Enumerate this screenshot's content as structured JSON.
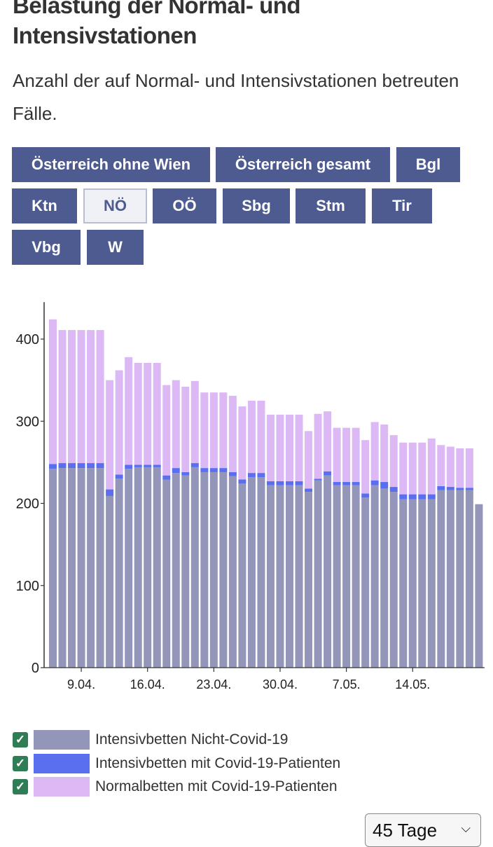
{
  "header": {
    "title": "Belastung der Normal- und Intensivstationen",
    "subtitle": "Anzahl der auf Normal- und Intensivstationen betreuten Fälle."
  },
  "regions": {
    "selected": "NÖ",
    "buttons": [
      {
        "label": "Österreich ohne Wien"
      },
      {
        "label": "Österreich gesamt"
      },
      {
        "label": "Bgl"
      },
      {
        "label": "Ktn"
      },
      {
        "label": "NÖ"
      },
      {
        "label": "OÖ"
      },
      {
        "label": "Sbg"
      },
      {
        "label": "Stm"
      },
      {
        "label": "Tir"
      },
      {
        "label": "Vbg"
      },
      {
        "label": "W"
      }
    ]
  },
  "chart_data": {
    "type": "bar",
    "stacked": true,
    "yticks": [
      0,
      100,
      200,
      300,
      400
    ],
    "ylim": [
      0,
      445
    ],
    "xtick_labels": [
      {
        "index": 3,
        "label": "9.04."
      },
      {
        "index": 10,
        "label": "16.04."
      },
      {
        "index": 17,
        "label": "23.04."
      },
      {
        "index": 24,
        "label": "30.04."
      },
      {
        "index": 31,
        "label": "7.05."
      },
      {
        "index": 38,
        "label": "14.05."
      }
    ],
    "series": [
      {
        "name": "Intensivbetten Nicht-Covid-19",
        "color": "#9396b8",
        "values": [
          242,
          243,
          243,
          243,
          243,
          243,
          209,
          230,
          242,
          244,
          244,
          244,
          229,
          237,
          234,
          244,
          238,
          238,
          238,
          233,
          224,
          232,
          232,
          222,
          222,
          222,
          222,
          214,
          228,
          234,
          222,
          222,
          222,
          207,
          222,
          218,
          214,
          205,
          205,
          205,
          205,
          216,
          216,
          216,
          216,
          199
        ]
      },
      {
        "name": "Intensivbetten mit Covid-19-Patienten",
        "color": "#5a6ff0",
        "values": [
          6,
          6,
          6,
          6,
          6,
          6,
          8,
          5,
          5,
          3,
          3,
          3,
          5,
          6,
          4,
          5,
          5,
          5,
          5,
          5,
          5,
          5,
          5,
          5,
          5,
          5,
          5,
          4,
          2,
          5,
          4,
          4,
          4,
          5,
          6,
          8,
          6,
          6,
          6,
          6,
          6,
          5,
          4,
          3,
          3,
          0
        ]
      },
      {
        "name": "Normalbetten mit Covid-19-Patienten",
        "color": "#dcb8f5",
        "values": [
          176,
          162,
          162,
          162,
          162,
          162,
          133,
          127,
          131,
          124,
          124,
          124,
          110,
          107,
          104,
          100,
          92,
          92,
          92,
          93,
          89,
          88,
          88,
          81,
          81,
          81,
          81,
          70,
          79,
          73,
          66,
          66,
          66,
          65,
          71,
          70,
          63,
          63,
          63,
          63,
          68,
          50,
          49,
          48,
          48,
          0
        ]
      }
    ]
  },
  "legend": {
    "items": [
      {
        "label": "Intensivbetten Nicht-Covid-19",
        "color": "#9396b8",
        "checked": true
      },
      {
        "label": "Intensivbetten mit Covid-19-Patienten",
        "color": "#5a6ff0",
        "checked": true
      },
      {
        "label": "Normalbetten mit Covid-19-Patienten",
        "color": "#dcb8f5",
        "checked": true
      }
    ]
  },
  "range": {
    "value": "45 Tage"
  }
}
